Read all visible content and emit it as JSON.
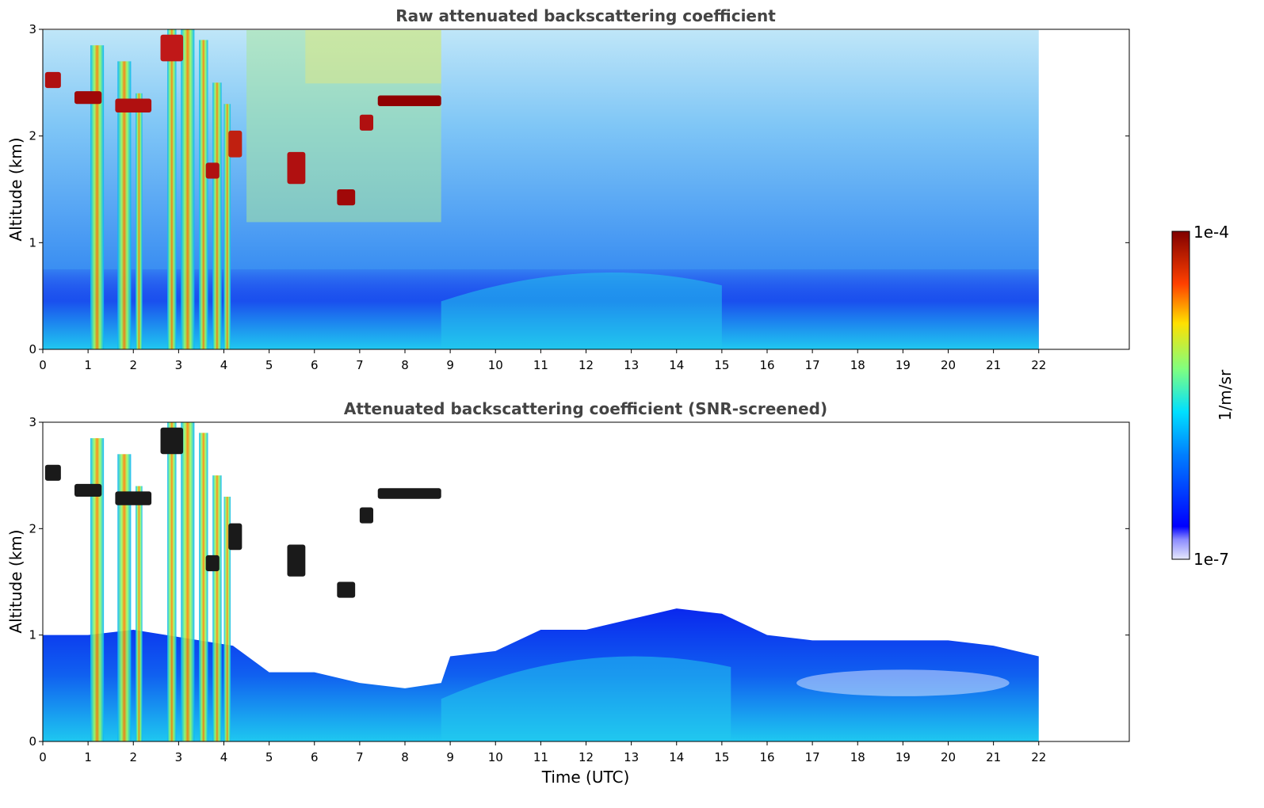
{
  "chart_data": [
    {
      "type": "heatmap",
      "title": "Raw attenuated backscattering coefficient",
      "xlabel": "",
      "ylabel": "Altitude (km)",
      "xlim": [
        0,
        24
      ],
      "ylim": [
        0,
        3
      ],
      "x_ticks": [
        "0",
        "1",
        "2",
        "3",
        "4",
        "5",
        "6",
        "7",
        "8",
        "9",
        "10",
        "11",
        "12",
        "13",
        "14",
        "15",
        "16",
        "17",
        "18",
        "19",
        "20",
        "21",
        "22"
      ],
      "y_ticks": [
        "0",
        "1",
        "2",
        "3"
      ],
      "data_extent_hours": [
        0,
        22
      ],
      "features": [
        {
          "label": "high-clouds",
          "time_range": [
            0,
            8.8
          ],
          "altitude_km": [
            1.4,
            3.0
          ]
        },
        {
          "label": "precipitation-columns",
          "time_range": [
            1,
            4.2
          ],
          "altitude_km": [
            0,
            3.0
          ]
        },
        {
          "label": "boundary-layer-aerosol",
          "time_range": [
            8.8,
            15
          ],
          "altitude_km": [
            0,
            1.0
          ]
        }
      ]
    },
    {
      "type": "heatmap",
      "title": "Attenuated backscattering coefficient (SNR-screened)",
      "xlabel": "Time (UTC)",
      "ylabel": "Altitude (km)",
      "xlim": [
        0,
        24
      ],
      "ylim": [
        0,
        3
      ],
      "x_ticks": [
        "0",
        "1",
        "2",
        "3",
        "4",
        "5",
        "6",
        "7",
        "8",
        "9",
        "10",
        "11",
        "12",
        "13",
        "14",
        "15",
        "16",
        "17",
        "18",
        "19",
        "20",
        "21",
        "22"
      ],
      "y_ticks": [
        "0",
        "1",
        "2",
        "3"
      ],
      "data_extent_hours": [
        0,
        22
      ],
      "boundary_layer_top_km": [
        [
          0,
          1.0
        ],
        [
          1,
          1.0
        ],
        [
          2,
          1.05
        ],
        [
          4.2,
          0.9
        ],
        [
          5,
          0.65
        ],
        [
          6,
          0.65
        ],
        [
          7,
          0.55
        ],
        [
          8,
          0.5
        ],
        [
          8.8,
          0.55
        ],
        [
          9,
          0.8
        ],
        [
          10,
          0.85
        ],
        [
          11,
          1.05
        ],
        [
          12,
          1.05
        ],
        [
          13,
          1.15
        ],
        [
          14,
          1.25
        ],
        [
          15,
          1.2
        ],
        [
          16,
          1.0
        ],
        [
          17,
          0.95
        ],
        [
          18,
          0.95
        ],
        [
          19,
          0.95
        ],
        [
          20,
          0.95
        ],
        [
          21,
          0.9
        ],
        [
          22,
          0.8
        ]
      ]
    }
  ],
  "colorbar": {
    "max_label": "1e-4",
    "min_label": "1e-7",
    "unit_label": "1/m/sr",
    "colormap": "jet"
  }
}
